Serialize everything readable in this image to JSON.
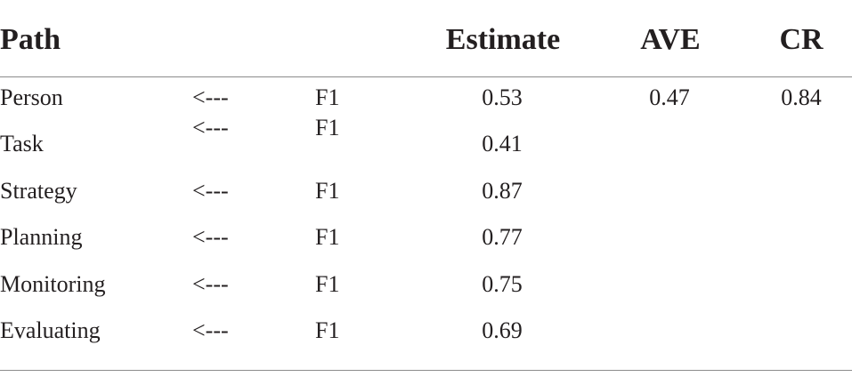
{
  "headers": {
    "path": "Path",
    "estimate": "Estimate",
    "ave": "AVE",
    "cr": "CR"
  },
  "rows": [
    {
      "indicator": "Person",
      "arrow": "<---",
      "factor": "F1",
      "estimate": "0.53",
      "ave": "0.47",
      "cr": "0.84"
    },
    {
      "indicator": "Task",
      "arrow": "<---",
      "factor": "F1",
      "estimate": "0.41",
      "ave": "",
      "cr": ""
    },
    {
      "indicator": "Strategy",
      "arrow": "<---",
      "factor": "F1",
      "estimate": "0.87",
      "ave": "",
      "cr": ""
    },
    {
      "indicator": "Planning",
      "arrow": "<---",
      "factor": "F1",
      "estimate": "0.77",
      "ave": "",
      "cr": ""
    },
    {
      "indicator": "Monitoring",
      "arrow": "<---",
      "factor": "F1",
      "estimate": "0.75",
      "ave": "",
      "cr": ""
    },
    {
      "indicator": "Evaluating",
      "arrow": "<---",
      "factor": "F1",
      "estimate": "0.69",
      "ave": "",
      "cr": ""
    }
  ]
}
